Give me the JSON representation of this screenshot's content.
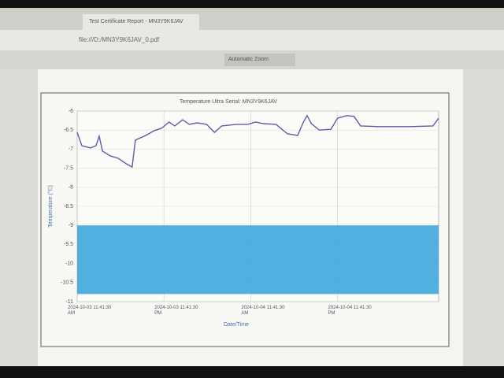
{
  "browser": {
    "tab": "Test Certificate Report - MN3Y9K6JAV",
    "url": "file:///D:/MN3Y9K6JAV_0.pdf",
    "zoom": "Automatic Zoom"
  },
  "chart_data": {
    "type": "line",
    "title": "Temperature Ultra  Serial: MN3Y9K6JAV",
    "y_label": "Temperature (°C)",
    "x_label": "Date/Time",
    "x": [
      0,
      0.65,
      1.85,
      2.6,
      3.05,
      3.5,
      4.6,
      5.7,
      6.75,
      7.6,
      8.05,
      9.5,
      10.6,
      11.7,
      12.7,
      13.5,
      14.6,
      15.5,
      16.6,
      17.9,
      19.0,
      20.0,
      22.0,
      23.6,
      24.7,
      25.8,
      27.5,
      29.1,
      30.5,
      31.3,
      31.8,
      32.4,
      33.5,
      35.1,
      36.0,
      37.3,
      38.3,
      39.2,
      41.6,
      46.0,
      49.2,
      50.0
    ],
    "series": [
      {
        "name": "Temperature",
        "color": "#5a5fa8",
        "values": [
          -6.56,
          -6.91,
          -6.97,
          -6.91,
          -6.66,
          -7.05,
          -7.18,
          -7.24,
          -7.38,
          -7.47,
          -6.76,
          -6.64,
          -6.52,
          -6.45,
          -6.29,
          -6.39,
          -6.23,
          -6.35,
          -6.31,
          -6.35,
          -6.56,
          -6.39,
          -6.35,
          -6.35,
          -6.29,
          -6.33,
          -6.35,
          -6.6,
          -6.64,
          -6.29,
          -6.12,
          -6.33,
          -6.5,
          -6.48,
          -6.19,
          -6.12,
          -6.14,
          -6.39,
          -6.41,
          -6.41,
          -6.39,
          -6.19
        ]
      }
    ],
    "band": {
      "from": -10.8,
      "to": -9.0,
      "color": "#3ea7dc"
    },
    "xlim": [
      0,
      50
    ],
    "xticks": [
      {
        "value": 0,
        "label": "2024-10-03 11:41:30 AM"
      },
      {
        "value": 12,
        "label": "2024-10-03 11:41:30 PM"
      },
      {
        "value": 24,
        "label": "2024-10-04 11:41:30 AM"
      },
      {
        "value": 36,
        "label": "2024-10-04 11:41:30 PM"
      }
    ],
    "ylim": [
      -11.0,
      -6.0
    ],
    "yticks": [
      -6.0,
      -6.5,
      -7.0,
      -7.5,
      -8.0,
      -8.5,
      -9.0,
      -9.5,
      -10.0,
      -10.5,
      -11.0
    ],
    "grid": true
  }
}
